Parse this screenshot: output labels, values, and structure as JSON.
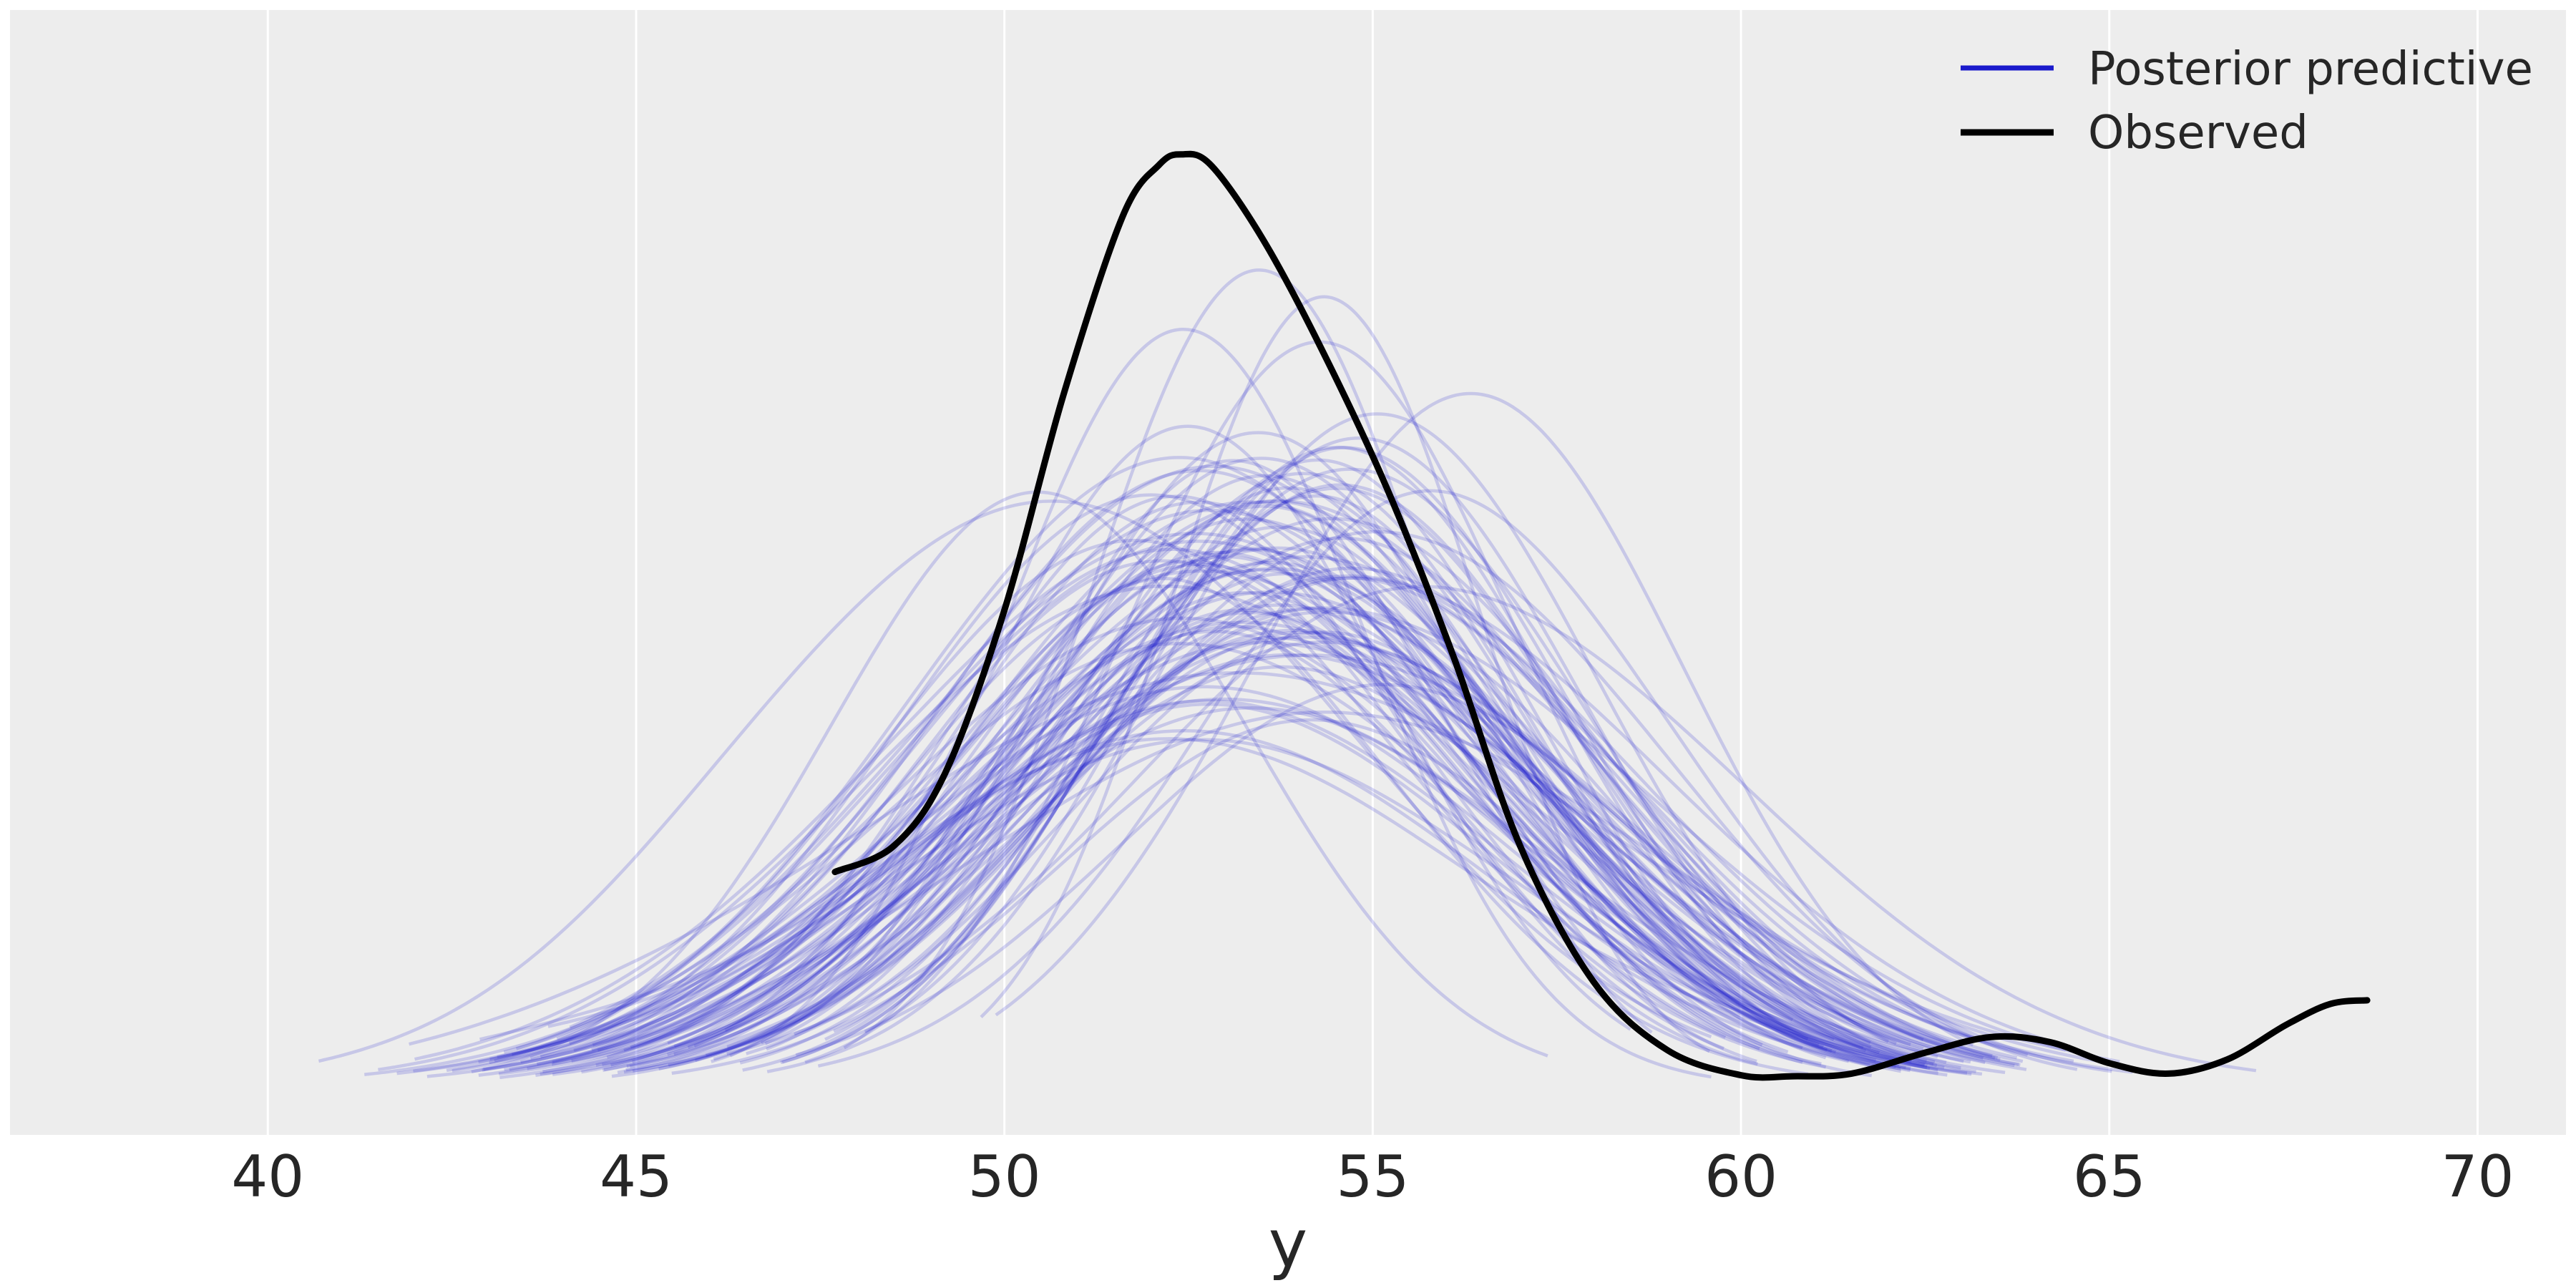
{
  "chart_data": {
    "type": "line",
    "title": "",
    "xlabel": "y",
    "ylabel": "",
    "xlim": [
      36.5,
      71.2
    ],
    "ylim": [
      0,
      0.2
    ],
    "xticks": [
      40,
      45,
      50,
      55,
      60,
      65,
      70
    ],
    "xtick_labels": [
      "40",
      "45",
      "50",
      "55",
      "60",
      "65",
      "70"
    ],
    "grid": "vertical",
    "background_color": "#ededed",
    "legend": {
      "position": "top-right",
      "entries": [
        {
          "label": "Posterior predictive",
          "color": "#1a1acc"
        },
        {
          "label": "Observed",
          "color": "#000000"
        }
      ]
    },
    "posterior_predictive": {
      "color": "#1a1acc",
      "opacity": 0.18,
      "count": 100
    },
    "observed": {
      "color": "#000000",
      "x": [
        47.7,
        48.5,
        49.2,
        50.0,
        50.8,
        51.6,
        52.1,
        52.4,
        52.8,
        53.5,
        54.3,
        55.2,
        56.1,
        57.0,
        58.0,
        59.0,
        60.0,
        60.7,
        61.5,
        62.5,
        63.4,
        64.2,
        65.0,
        65.8,
        66.6,
        67.4,
        68.0,
        68.5
      ],
      "y": [
        0.045,
        0.05,
        0.064,
        0.095,
        0.136,
        0.17,
        0.18,
        0.182,
        0.18,
        0.166,
        0.145,
        0.118,
        0.086,
        0.05,
        0.024,
        0.011,
        0.0062,
        0.006,
        0.0065,
        0.0105,
        0.0135,
        0.0125,
        0.0085,
        0.0065,
        0.0092,
        0.0158,
        0.0198,
        0.0205
      ]
    }
  }
}
